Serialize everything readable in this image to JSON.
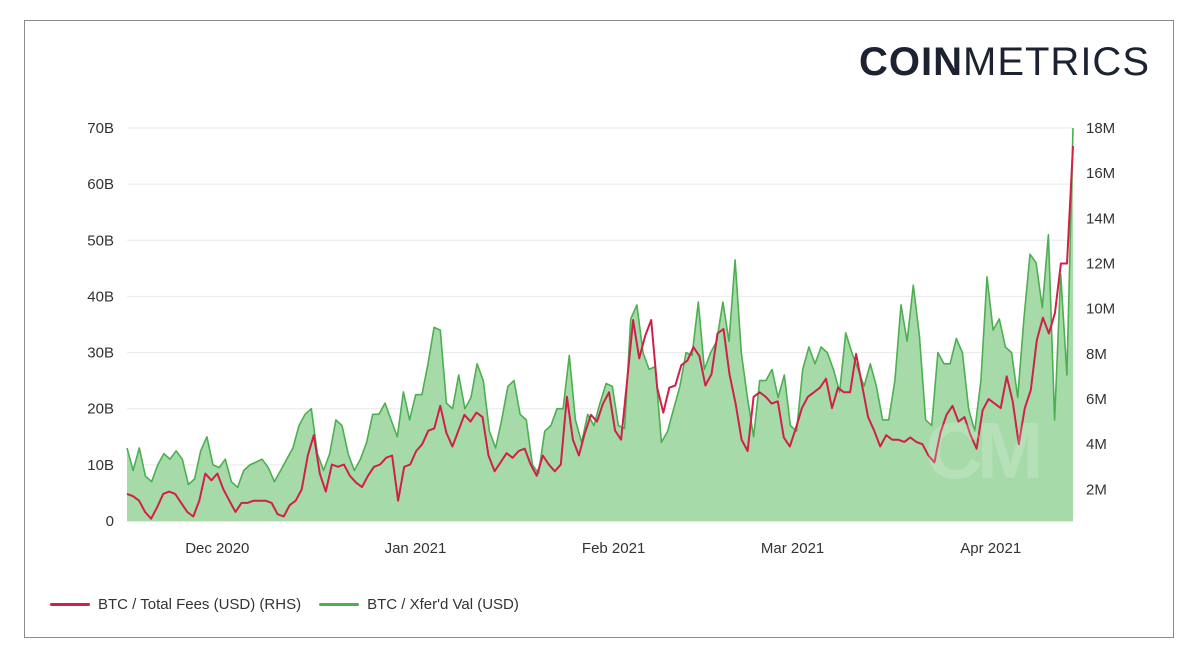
{
  "logo": {
    "bold": "COIN",
    "thin": "METRICS"
  },
  "watermark": "CM",
  "chart_data": {
    "type": "area",
    "x_ticks": [
      "Dec 2020",
      "Jan 2021",
      "Feb 2021",
      "Mar 2021",
      "Apr 2021"
    ],
    "y_left_ticks": [
      "0",
      "10B",
      "20B",
      "30B",
      "40B",
      "50B",
      "60B",
      "70B"
    ],
    "y_right_ticks": [
      "2M",
      "4M",
      "6M",
      "8M",
      "10M",
      "12M",
      "14M",
      "16M",
      "18M"
    ],
    "ylim_left": [
      0,
      70000000000
    ],
    "ylim_right": [
      600000,
      18000000
    ],
    "x_range": [
      "2020-11-20",
      "2021-04-17"
    ],
    "grid": true,
    "legend_position": "bottom-left",
    "series": [
      {
        "name": "BTC / Total Fees (USD) (RHS)",
        "axis": "right",
        "color": "#d0204a",
        "values": [
          1800000,
          1700000,
          1500000,
          1000000,
          700000,
          1200000,
          1800000,
          1900000,
          1800000,
          1400000,
          1000000,
          800000,
          1500000,
          2700000,
          2400000,
          2700000,
          2000000,
          1500000,
          1000000,
          1400000,
          1400000,
          1500000,
          1500000,
          1500000,
          1400000,
          900000,
          800000,
          1300000,
          1500000,
          2000000,
          3500000,
          4400000,
          2700000,
          1900000,
          3100000,
          3000000,
          3100000,
          2600000,
          2300000,
          2100000,
          2600000,
          3000000,
          3100000,
          3400000,
          3500000,
          1500000,
          3000000,
          3100000,
          3700000,
          4000000,
          4600000,
          4700000,
          5700000,
          4500000,
          3900000,
          4600000,
          5300000,
          5000000,
          5400000,
          5200000,
          3500000,
          2800000,
          3200000,
          3600000,
          3400000,
          3700000,
          3800000,
          3100000,
          2600000,
          3500000,
          3100000,
          2800000,
          3100000,
          6100000,
          4200000,
          3500000,
          4500000,
          5300000,
          5000000,
          5800000,
          6300000,
          4600000,
          4200000,
          6800000,
          9500000,
          7800000,
          8800000,
          9500000,
          6500000,
          5400000,
          6500000,
          6600000,
          7500000,
          7700000,
          8300000,
          7900000,
          6600000,
          7100000,
          8900000,
          9100000,
          7100000,
          5800000,
          4200000,
          3700000,
          6100000,
          6300000,
          6100000,
          5800000,
          5900000,
          4300000,
          3900000,
          4700000,
          5600000,
          6100000,
          6300000,
          6500000,
          6900000,
          5600000,
          6500000,
          6300000,
          6300000,
          8000000,
          6600000,
          5200000,
          4600000,
          3900000,
          4400000,
          4200000,
          4200000,
          4100000,
          4300000,
          4100000,
          4000000,
          3500000,
          3200000,
          4500000,
          5300000,
          5700000,
          5000000,
          5200000,
          4400000,
          3800000,
          5500000,
          6000000,
          5800000,
          5600000,
          7000000,
          5900000,
          4000000,
          5600000,
          6400000,
          8600000,
          9600000,
          8900000,
          9800000,
          12000000,
          12000000,
          17200000
        ]
      },
      {
        "name": "BTC / Xfer'd Val (USD)",
        "axis": "left",
        "color": "#4caf50",
        "values": [
          13000000000,
          9000000000,
          13000000000,
          8000000000,
          7000000000,
          10000000000,
          12000000000,
          11000000000,
          12500000000,
          11000000000,
          6500000000,
          7500000000,
          12500000000,
          15000000000,
          10000000000,
          9500000000,
          11000000000,
          7000000000,
          6000000000,
          9000000000,
          10000000000,
          10500000000,
          11000000000,
          9500000000,
          7000000000,
          9000000000,
          11000000000,
          13000000000,
          17000000000,
          19000000000,
          20000000000,
          12000000000,
          9000000000,
          12000000000,
          18000000000,
          17000000000,
          12000000000,
          9000000000,
          11000000000,
          14000000000,
          19000000000,
          19000000000,
          21000000000,
          18000000000,
          15000000000,
          23000000000,
          18000000000,
          22500000000,
          22500000000,
          28000000000,
          34500000000,
          34000000000,
          21000000000,
          20000000000,
          26000000000,
          20000000000,
          22000000000,
          28000000000,
          25000000000,
          16000000000,
          13000000000,
          18000000000,
          24000000000,
          25000000000,
          19000000000,
          18000000000,
          10000000000,
          8500000000,
          16000000000,
          17000000000,
          20000000000,
          20000000000,
          29500000000,
          18000000000,
          14000000000,
          19000000000,
          17000000000,
          21000000000,
          24500000000,
          24000000000,
          17000000000,
          16500000000,
          36000000000,
          38500000000,
          30000000000,
          27000000000,
          27500000000,
          14000000000,
          16000000000,
          20000000000,
          24000000000,
          30000000000,
          29500000000,
          39000000000,
          27000000000,
          30000000000,
          32000000000,
          39000000000,
          32000000000,
          46500000000,
          30000000000,
          22000000000,
          15000000000,
          25000000000,
          25000000000,
          27000000000,
          22000000000,
          26000000000,
          17000000000,
          16000000000,
          27000000000,
          31000000000,
          28000000000,
          31000000000,
          30000000000,
          27000000000,
          23000000000,
          33500000000,
          30000000000,
          27000000000,
          24000000000,
          28000000000,
          24000000000,
          18000000000,
          18000000000,
          25000000000,
          38500000000,
          32000000000,
          42000000000,
          33000000000,
          18000000000,
          17000000000,
          30000000000,
          28000000000,
          28000000000,
          32500000000,
          30000000000,
          20000000000,
          16000000000,
          25000000000,
          43500000000,
          34000000000,
          36000000000,
          31000000000,
          30000000000,
          22000000000,
          36000000000,
          47500000000,
          46000000000,
          38000000000,
          51000000000,
          18000000000,
          44000000000,
          26000000000,
          70000000000
        ]
      }
    ]
  },
  "legend": {
    "fees_label": "BTC / Total Fees (USD) (RHS)",
    "xfer_label": "BTC / Xfer'd Val (USD)"
  }
}
